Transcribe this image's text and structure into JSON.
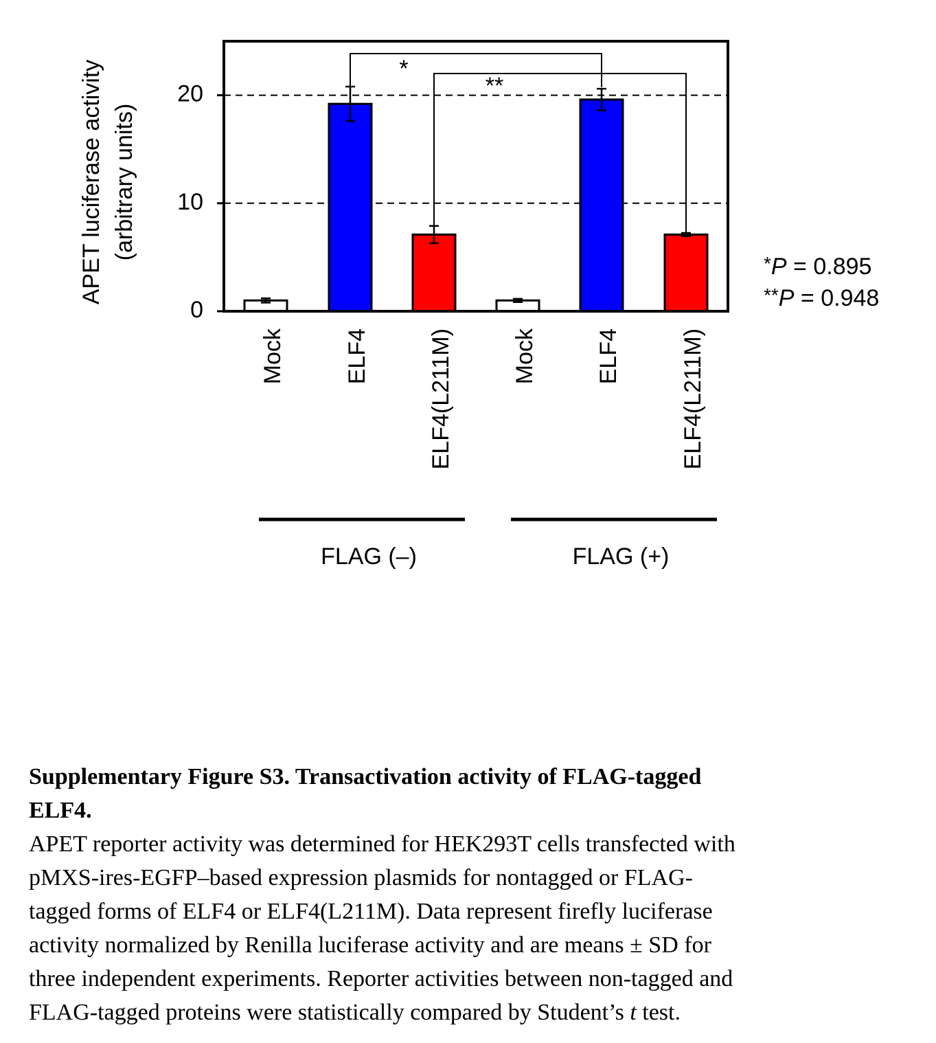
{
  "chart_data": {
    "type": "bar",
    "y_label_lines": [
      "APET luciferase activity",
      "(arbitrary units)"
    ],
    "categories": [
      "Mock",
      "ELF4",
      "ELF4(L211M)",
      "Mock",
      "ELF4",
      "ELF4(L211M)"
    ],
    "values": [
      1.0,
      19.2,
      7.1,
      1.0,
      19.6,
      7.1
    ],
    "errors": [
      0.2,
      1.6,
      0.8,
      0.15,
      1.0,
      0.15
    ],
    "colors": [
      "#ffffff",
      "#0000ff",
      "#ff0000",
      "#ffffff",
      "#0000ff",
      "#ff0000"
    ],
    "groups": [
      "FLAG (–)",
      "FLAG (+)"
    ],
    "ylim": [
      0,
      25
    ],
    "yticks": [
      0,
      10,
      20
    ],
    "grid": true,
    "significance": [
      "*",
      "**"
    ],
    "p_notes": [
      {
        "stars": "*",
        "symbol": "P",
        "text": " = 0.895"
      },
      {
        "stars": "**",
        "symbol": "P",
        "text": " = 0.948"
      }
    ]
  },
  "caption": {
    "title_lines": [
      "Supplementary Figure S3. Transactivation activity of FLAG-tagged",
      "ELF4."
    ],
    "body_lines": [
      "APET reporter activity was determined for HEK293T cells transfected with",
      "pMXS-ires-EGFP–based expression plasmids for nontagged or FLAG-",
      "tagged forms of ELF4 or ELF4(L211M). Data represent firefly luciferase",
      "activity normalized by Renilla luciferase activity and are means ± SD for",
      "three independent experiments. Reporter activities between non-tagged and"
    ],
    "last_line": [
      "FLAG-tagged proteins were statistically compared by Student’s ",
      "t",
      " test."
    ]
  }
}
